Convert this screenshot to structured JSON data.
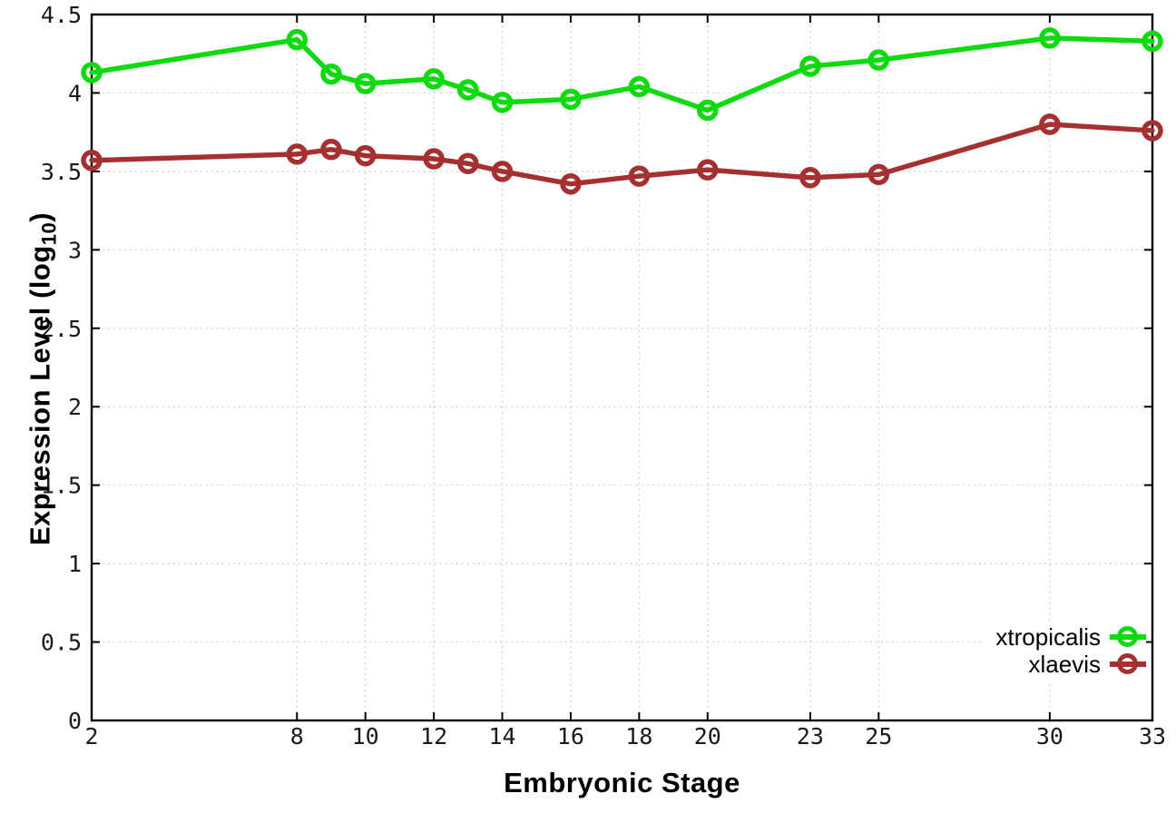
{
  "chart_data": {
    "type": "line",
    "title": "",
    "xlabel": "Embryonic Stage",
    "ylabel": "Expression Level (log10)",
    "ylabel_parts": {
      "pre": "Expression Level (log",
      "sub": "10",
      "post": ")"
    },
    "xlim": [
      2,
      33
    ],
    "ylim": [
      0,
      4.5
    ],
    "grid": true,
    "legend_position": "bottom-right",
    "x_ticks": [
      2,
      8,
      10,
      12,
      14,
      16,
      18,
      20,
      23,
      25,
      30,
      33
    ],
    "x_tick_labels": [
      "2",
      "8",
      "10",
      "12",
      "14",
      "16",
      "18",
      "20",
      "23",
      "25",
      "30",
      "33"
    ],
    "y_ticks": [
      0,
      0.5,
      1,
      1.5,
      2,
      2.5,
      3,
      3.5,
      4,
      4.5
    ],
    "y_tick_labels": [
      "0",
      "0.5",
      "1",
      "1.5",
      "2",
      "2.5",
      "3",
      "3.5",
      "4",
      "4.5"
    ],
    "x": [
      2,
      8,
      9,
      10,
      12,
      13,
      14,
      16,
      18,
      20,
      23,
      25,
      30,
      33
    ],
    "series": [
      {
        "name": "xtropicalis",
        "color": "#0edb0e",
        "values": [
          4.13,
          4.34,
          4.12,
          4.06,
          4.09,
          4.02,
          3.94,
          3.96,
          4.04,
          3.89,
          4.17,
          4.21,
          4.35,
          4.33
        ]
      },
      {
        "name": "xlaevis",
        "color": "#a5302f",
        "values": [
          3.57,
          3.61,
          3.64,
          3.6,
          3.58,
          3.55,
          3.5,
          3.42,
          3.47,
          3.51,
          3.46,
          3.48,
          3.8,
          3.76
        ]
      }
    ]
  },
  "colors": {
    "background": "#ffffff",
    "grid": "#c4c4c4",
    "axis": "#000000",
    "tick_label": "#1a1a1a",
    "series_green": "#0edb0e",
    "series_red": "#a5302f"
  }
}
